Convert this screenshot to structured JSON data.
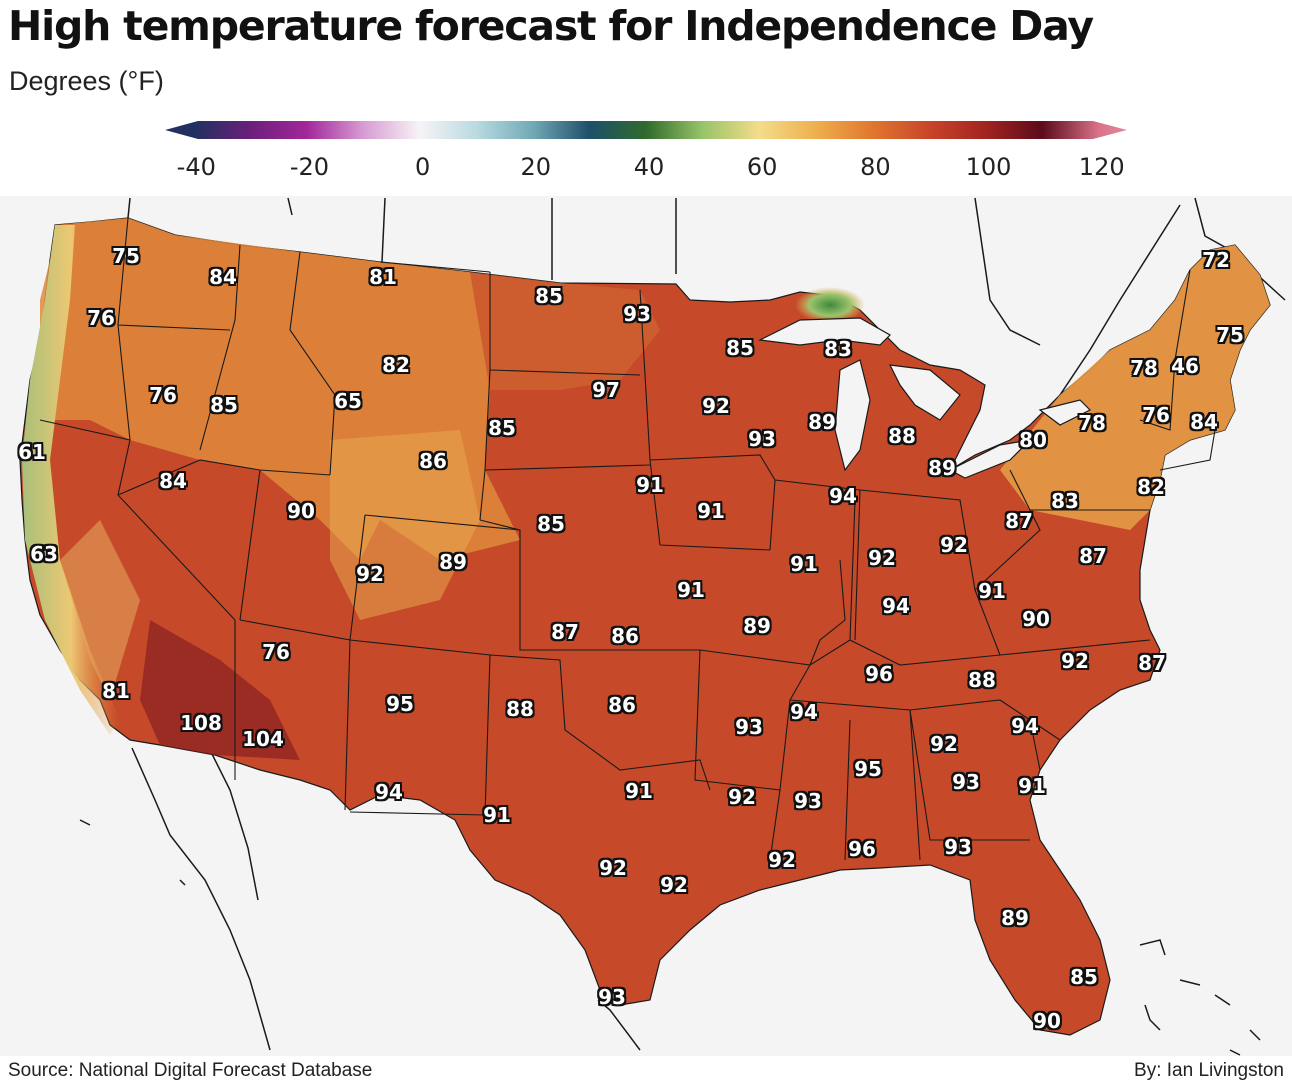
{
  "title": "High temperature forecast for Independence Day",
  "subtitle": "Degrees (°F)",
  "legend": {
    "ticks": [
      "-40",
      "-20",
      "0",
      "20",
      "40",
      "60",
      "80",
      "100",
      "120"
    ],
    "stops": [
      {
        "v": -45,
        "c": "#2a2f5e"
      },
      {
        "v": -40,
        "c": "#1f3160"
      },
      {
        "v": -30,
        "c": "#6a1f7a"
      },
      {
        "v": -20,
        "c": "#a2279a"
      },
      {
        "v": -10,
        "c": "#d79bd3"
      },
      {
        "v": 0,
        "c": "#f7f3f6"
      },
      {
        "v": 10,
        "c": "#b9dbe1"
      },
      {
        "v": 20,
        "c": "#71a9b5"
      },
      {
        "v": 30,
        "c": "#1e4f6a"
      },
      {
        "v": 40,
        "c": "#2f6b2c"
      },
      {
        "v": 50,
        "c": "#98c468"
      },
      {
        "v": 60,
        "c": "#f4dc8a"
      },
      {
        "v": 70,
        "c": "#eeb04e"
      },
      {
        "v": 80,
        "c": "#e0772e"
      },
      {
        "v": 90,
        "c": "#c9452a"
      },
      {
        "v": 100,
        "c": "#a2241f"
      },
      {
        "v": 110,
        "c": "#5c0b1b"
      },
      {
        "v": 120,
        "c": "#d9728a"
      },
      {
        "v": 125,
        "c": "#e3889b"
      }
    ]
  },
  "colors": {
    "land_main": "#c64a2a",
    "land_west": "#d47536",
    "land_north": "#e0913f",
    "land_northeast": "#e39a45",
    "ocean": "#f4f4f4",
    "coast_cool": "#9fc27a"
  },
  "cities": [
    {
      "label": "75"
    },
    {
      "label": "84"
    },
    {
      "label": "81"
    },
    {
      "label": "85"
    },
    {
      "label": "93"
    },
    {
      "label": "72"
    },
    {
      "label": "76"
    },
    {
      "label": "85"
    },
    {
      "label": "83"
    },
    {
      "label": "75"
    },
    {
      "label": "82"
    },
    {
      "label": "78"
    },
    {
      "label": "46"
    },
    {
      "label": "76"
    },
    {
      "label": "85"
    },
    {
      "label": "65"
    },
    {
      "label": "97"
    },
    {
      "label": "92"
    },
    {
      "label": "89"
    },
    {
      "label": "85"
    },
    {
      "label": "93"
    },
    {
      "label": "88"
    },
    {
      "label": "78"
    },
    {
      "label": "76"
    },
    {
      "label": "84"
    },
    {
      "label": "80"
    },
    {
      "label": "61"
    },
    {
      "label": "86"
    },
    {
      "label": "89"
    },
    {
      "label": "84"
    },
    {
      "label": "91"
    },
    {
      "label": "94"
    },
    {
      "label": "82"
    },
    {
      "label": "83"
    },
    {
      "label": "90"
    },
    {
      "label": "91"
    },
    {
      "label": "87"
    },
    {
      "label": "85"
    },
    {
      "label": "92"
    },
    {
      "label": "63"
    },
    {
      "label": "89"
    },
    {
      "label": "92"
    },
    {
      "label": "91"
    },
    {
      "label": "87"
    },
    {
      "label": "92"
    },
    {
      "label": "91"
    },
    {
      "label": "94"
    },
    {
      "label": "91"
    },
    {
      "label": "90"
    },
    {
      "label": "87"
    },
    {
      "label": "86"
    },
    {
      "label": "89"
    },
    {
      "label": "76"
    },
    {
      "label": "96"
    },
    {
      "label": "92"
    },
    {
      "label": "87"
    },
    {
      "label": "88"
    },
    {
      "label": "81"
    },
    {
      "label": "95"
    },
    {
      "label": "88"
    },
    {
      "label": "86"
    },
    {
      "label": "94"
    },
    {
      "label": "108"
    },
    {
      "label": "93"
    },
    {
      "label": "94"
    },
    {
      "label": "104"
    },
    {
      "label": "92"
    },
    {
      "label": "95"
    },
    {
      "label": "93"
    },
    {
      "label": "91"
    },
    {
      "label": "94"
    },
    {
      "label": "91"
    },
    {
      "label": "92"
    },
    {
      "label": "93"
    },
    {
      "label": "91"
    },
    {
      "label": "92"
    },
    {
      "label": "96"
    },
    {
      "label": "93"
    },
    {
      "label": "92"
    },
    {
      "label": "92"
    },
    {
      "label": "89"
    },
    {
      "label": "85"
    },
    {
      "label": "93"
    },
    {
      "label": "90"
    }
  ],
  "footer": {
    "source": "Source: National Digital Forecast Database",
    "byline": "By: Ian Livingston"
  }
}
